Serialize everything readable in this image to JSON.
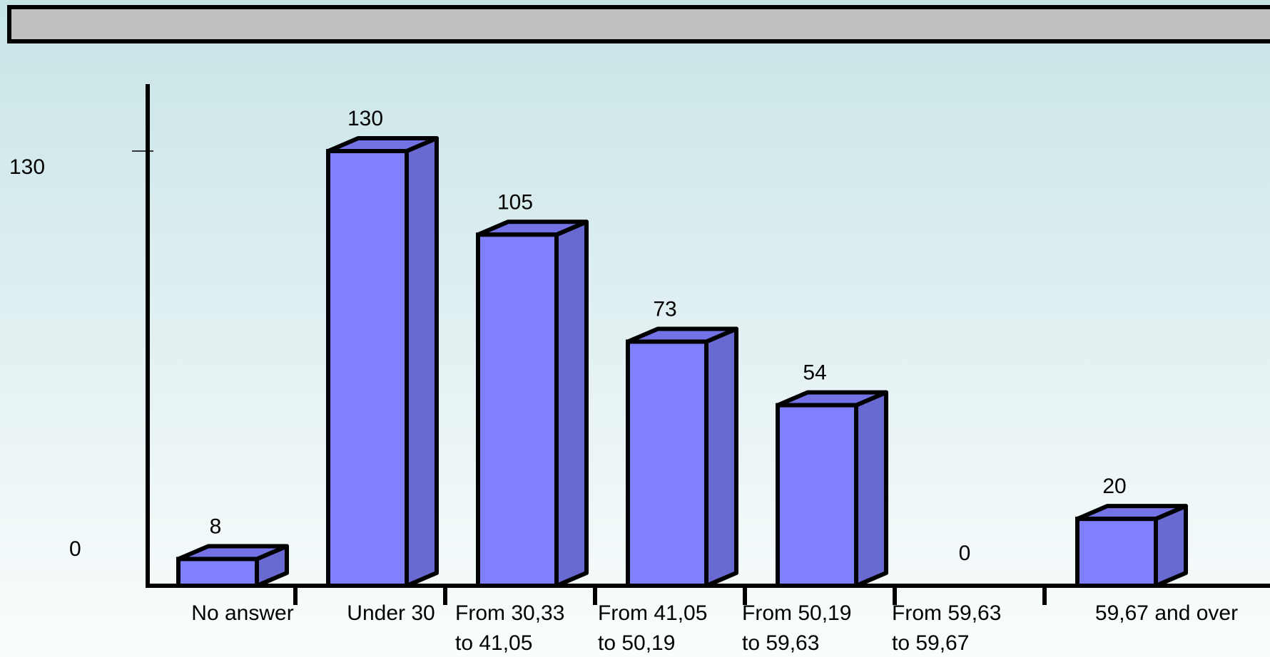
{
  "chart_data": {
    "type": "bar",
    "title": "",
    "xlabel": "",
    "ylabel": "",
    "categories": [
      [
        "No answer"
      ],
      [
        "Under 30"
      ],
      [
        "From 30,33",
        "to 41,05"
      ],
      [
        "From 41,05",
        "to 50,19"
      ],
      [
        "From 50,19",
        "to 59,63"
      ],
      [
        "From 59,63",
        "to 59,67"
      ],
      [
        "59,67 and over"
      ]
    ],
    "values": [
      8,
      130,
      105,
      73,
      54,
      0,
      20
    ],
    "data_labels": [
      "8",
      "130",
      "105",
      "73",
      "54",
      "0",
      "20"
    ],
    "y_ticks": [
      "0",
      "130"
    ],
    "ylim": [
      0,
      130
    ],
    "grid": false,
    "legend": "none",
    "colors": {
      "bar_front": "#8080ff",
      "bar_side": "#6969d2",
      "bar_top": "#7373e6",
      "outline": "#000000",
      "title_bar": "#c0c0c0"
    }
  }
}
